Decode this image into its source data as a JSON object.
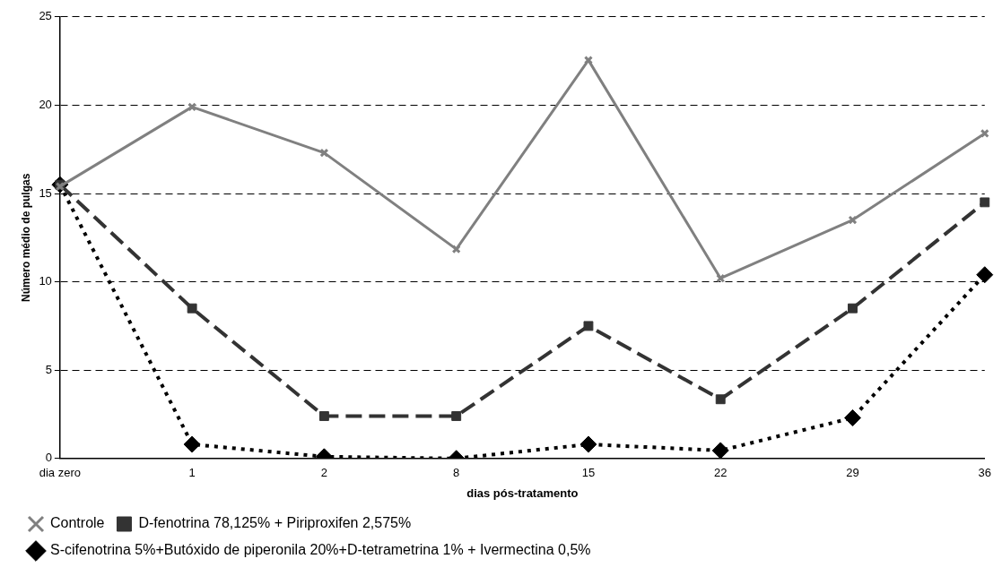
{
  "chart_data": {
    "type": "line",
    "xlabel": "dias pós-tratamento",
    "ylabel": "Número médio de pulgas",
    "categories": [
      "dia zero",
      "1",
      "2",
      "8",
      "15",
      "22",
      "29",
      "36"
    ],
    "ylim": [
      0,
      25
    ],
    "yticks": [
      0,
      5,
      10,
      15,
      20,
      25
    ],
    "grid": "y",
    "legend": "bottom",
    "series": [
      {
        "name": "S-cifenotrina 5%+Butóxido de piperonila 20%+D-tetrametrina 1% + Ivermectina 0,5%",
        "color": "#000000",
        "marker": "diamond",
        "line_style": "dotted",
        "values": [
          15.5,
          0.8,
          0.1,
          0,
          0.8,
          0.45,
          2.3,
          10.4
        ]
      },
      {
        "name": "D-fenotrina 78,125% + Piriproxifen 2,575%",
        "color": "#333333",
        "marker": "square",
        "line_style": "dashed",
        "values": [
          15.5,
          8.5,
          2.4,
          2.4,
          7.5,
          3.35,
          8.5,
          14.5
        ]
      },
      {
        "name": "Controle",
        "color": "#808080",
        "marker": "cross",
        "line_style": "solid",
        "values": [
          15.4,
          19.9,
          17.3,
          11.85,
          22.55,
          10.2,
          13.5,
          18.4
        ]
      }
    ]
  }
}
